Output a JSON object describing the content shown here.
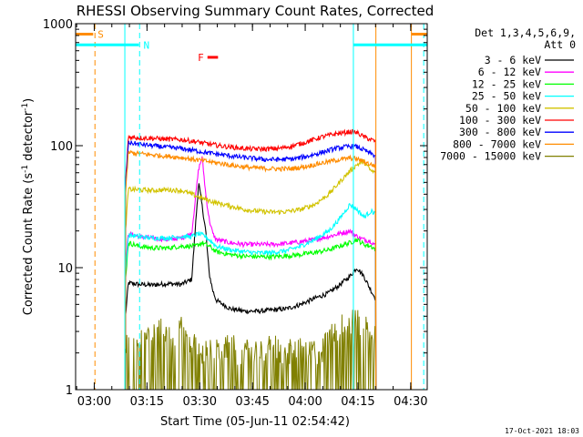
{
  "chart_data": {
    "type": "line",
    "title": "RHESSI Observing Summary Count Rates, Corrected",
    "xlabel": "Start Time (05-Jun-11 02:54:42)",
    "ylabel_main": "Corrected Count Rate (s",
    "ylabel_sup1": "-1",
    "ylabel_mid": " detector",
    "ylabel_sup2": "-1",
    "ylabel_end": ")",
    "y_scale": "log",
    "ylim": [
      1,
      1000
    ],
    "y_ticks": [
      {
        "value": 1,
        "label": "1"
      },
      {
        "value": 10,
        "label": "10"
      },
      {
        "value": 100,
        "label": "100"
      },
      {
        "value": 1000,
        "label": "1000"
      }
    ],
    "xlim_minutes": [
      0,
      100
    ],
    "x_ticks": [
      {
        "minute": 5.3,
        "label": "03:00"
      },
      {
        "minute": 20.3,
        "label": "03:15"
      },
      {
        "minute": 35.3,
        "label": "03:30"
      },
      {
        "minute": 50.3,
        "label": "03:45"
      },
      {
        "minute": 65.3,
        "label": "04:00"
      },
      {
        "minute": 80.3,
        "label": "04:15"
      },
      {
        "minute": 95.3,
        "label": "04:30"
      }
    ],
    "legend_header": "Det 1,3,4,5,6,9,",
    "legend_header2": "Att 0",
    "legend_placement": "right",
    "timestamp": "17-Oct-2021 18:03",
    "data_start_minute": 14.2,
    "data_end_minute": 85.4,
    "series": [
      {
        "name": "3 - 6 keV",
        "color": "#000000",
        "x": [
          14.2,
          15,
          18,
          22,
          26,
          30,
          33,
          35,
          37,
          38,
          39,
          40,
          44,
          48,
          52,
          56,
          60,
          64,
          68,
          72,
          75,
          78,
          80,
          82,
          84,
          85.4
        ],
        "y": [
          4,
          7.5,
          7.3,
          7.2,
          7.4,
          7.3,
          8,
          50,
          20,
          9,
          6.5,
          5.4,
          4.6,
          4.4,
          4.4,
          4.5,
          4.6,
          5.0,
          5.6,
          6.2,
          7.2,
          8.5,
          10,
          8.5,
          6.5,
          5.5
        ]
      },
      {
        "name": "6 - 12 keV",
        "color": "#ff00ff",
        "x": [
          14.2,
          15,
          18,
          22,
          26,
          30,
          33,
          35,
          36,
          37,
          38,
          39,
          40,
          44,
          48,
          52,
          56,
          60,
          64,
          68,
          72,
          75,
          78,
          80,
          82,
          84,
          85.4
        ],
        "y": [
          10,
          19,
          18,
          17.5,
          17,
          17.5,
          19,
          65,
          80,
          40,
          25,
          19,
          17,
          16,
          15.5,
          15.5,
          15.5,
          15.8,
          16.3,
          17,
          18,
          19,
          20,
          18,
          17,
          16.5,
          15
        ]
      },
      {
        "name": "12 - 25 keV",
        "color": "#00ff00",
        "x": [
          14.2,
          15,
          18,
          22,
          26,
          30,
          34,
          36,
          38,
          40,
          44,
          48,
          52,
          56,
          60,
          64,
          68,
          72,
          75,
          78,
          80,
          82,
          84,
          85.4
        ],
        "y": [
          8,
          16,
          15,
          14.5,
          14.5,
          15,
          15,
          16,
          15,
          13.5,
          12.8,
          12.4,
          12.3,
          12.3,
          12.5,
          12.8,
          13.3,
          14,
          15,
          16,
          17,
          15.5,
          15,
          14
        ]
      },
      {
        "name": "25 - 50 keV",
        "color": "#00ffff",
        "x": [
          14.2,
          15,
          18,
          22,
          26,
          30,
          33,
          35,
          37,
          40,
          44,
          48,
          52,
          56,
          60,
          64,
          68,
          72,
          75,
          78,
          80,
          82,
          84,
          85.4
        ],
        "y": [
          9,
          18.5,
          18,
          17.5,
          17.5,
          18,
          18,
          19,
          18,
          15,
          14,
          13.5,
          13.2,
          13.3,
          13.8,
          15,
          17,
          20,
          25,
          33,
          30,
          26,
          29,
          28
        ]
      },
      {
        "name": "50 - 100 keV",
        "color": "#d2c300",
        "x": [
          14.2,
          15,
          18,
          22,
          26,
          30,
          33,
          36,
          40,
          44,
          48,
          52,
          56,
          60,
          64,
          68,
          72,
          75,
          78,
          80,
          82,
          84,
          85.4
        ],
        "y": [
          20,
          44,
          43.5,
          43,
          43.5,
          43,
          40,
          37,
          34,
          32,
          30,
          29,
          28.5,
          28.8,
          30,
          33,
          40,
          50,
          62,
          70,
          74,
          62,
          60
        ]
      },
      {
        "name": "100 - 300 keV",
        "color": "#ff0000",
        "x": [
          14.2,
          15,
          18,
          22,
          26,
          30,
          34,
          38,
          42,
          46,
          50,
          54,
          58,
          62,
          66,
          70,
          74,
          78,
          80,
          82,
          84,
          85.4
        ],
        "y": [
          50,
          118,
          116,
          115,
          113,
          112,
          108,
          103,
          99,
          96,
          94,
          94,
          95,
          100,
          108,
          118,
          125,
          130,
          128,
          118,
          112,
          108
        ]
      },
      {
        "name": "300 - 800 keV",
        "color": "#0000ff",
        "x": [
          14.2,
          15,
          18,
          22,
          26,
          30,
          34,
          38,
          42,
          46,
          50,
          54,
          58,
          62,
          66,
          70,
          74,
          78,
          80,
          82,
          84,
          85.4
        ],
        "y": [
          45,
          106,
          103,
          100,
          97,
          95,
          91,
          87,
          84,
          81,
          79,
          77,
          77,
          78,
          82,
          88,
          95,
          99,
          98,
          92,
          86,
          82
        ]
      },
      {
        "name": "800 - 7000 keV",
        "color": "#ff8c00",
        "x": [
          14.2,
          15,
          18,
          22,
          26,
          30,
          34,
          38,
          42,
          46,
          50,
          54,
          58,
          62,
          66,
          70,
          74,
          78,
          80,
          82,
          84,
          85.4
        ],
        "y": [
          40,
          88,
          86,
          84,
          82,
          80,
          77,
          74,
          71,
          68,
          66,
          65,
          64.5,
          65,
          68,
          72,
          76,
          79,
          78,
          74,
          70,
          68
        ]
      },
      {
        "name": "7000 - 15000 keV",
        "color": "#808000",
        "x": [
          14.2,
          15,
          18,
          20,
          22,
          24,
          26,
          28,
          30,
          32,
          34,
          36,
          38,
          40,
          42,
          44,
          46,
          48,
          50,
          52,
          54,
          56,
          58,
          60,
          62,
          64,
          66,
          68,
          70,
          72,
          74,
          76,
          78,
          80,
          82,
          84,
          85.4
        ],
        "y": [
          2.2,
          2.5,
          2.3,
          2.6,
          2.8,
          3.0,
          2.6,
          2.5,
          3.1,
          2.5,
          2.2,
          2.0,
          2.0,
          2.0,
          2.0,
          2.3,
          2.0,
          2.0,
          2.0,
          2.0,
          2.0,
          2.3,
          2.0,
          2.0,
          2.0,
          2.2,
          2.0,
          2.0,
          2.0,
          2.5,
          3.0,
          3.3,
          3.5,
          3.6,
          3.2,
          3.0,
          2.8
        ]
      }
    ],
    "annotations": [
      {
        "label": "S",
        "color": "#ff8c00",
        "y_value": 820,
        "x_from": 0,
        "x_to": 5
      },
      {
        "label": "S",
        "color": "#ff8c00",
        "y_value": 820,
        "x_from": 95.5,
        "x_to": 100
      },
      {
        "label": "N",
        "color": "#00ffff",
        "y_value": 670,
        "x_from": 0,
        "x_to": 18
      },
      {
        "label": "N",
        "color": "#00ffff",
        "y_value": 670,
        "x_from": 79,
        "x_to": 100
      },
      {
        "label": "F",
        "color": "#ff0000",
        "y_value": 530,
        "x_from": 37.5,
        "x_to": 40.5
      }
    ],
    "vertical_markers": [
      {
        "minute": 5.5,
        "color": "#ff8c00",
        "style": "dashed"
      },
      {
        "minute": 14.0,
        "color": "#00ffff",
        "style": "solid"
      },
      {
        "minute": 18.2,
        "color": "#00ffff",
        "style": "dashed"
      },
      {
        "minute": 79.0,
        "color": "#00ffff",
        "style": "solid"
      },
      {
        "minute": 85.4,
        "color": "#ff8c00",
        "style": "solid"
      },
      {
        "minute": 95.5,
        "color": "#ff8c00",
        "style": "solid"
      },
      {
        "minute": 99.0,
        "color": "#00ffff",
        "style": "dashed"
      }
    ]
  }
}
